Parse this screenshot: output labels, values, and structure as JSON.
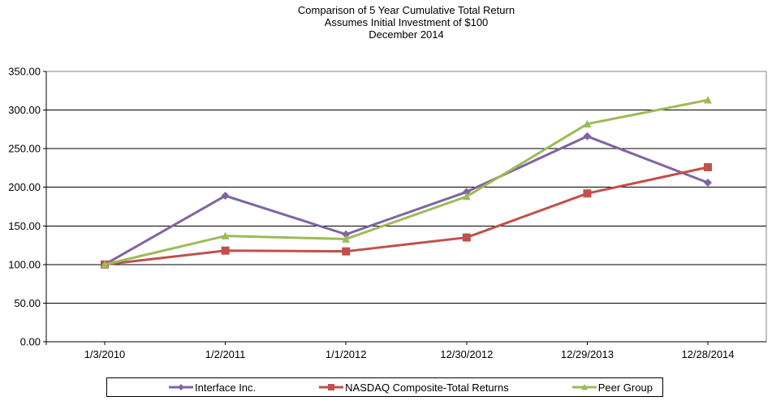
{
  "chart_data": {
    "type": "line",
    "title": "Comparison of 5 Year Cumulative Total Return",
    "subtitle": "Assumes Initial Investment of $100",
    "subtitle2": "December 2014",
    "categories": [
      "1/3/2010",
      "1/2/2011",
      "1/1/2012",
      "12/30/2012",
      "12/29/2013",
      "12/28/2014"
    ],
    "series": [
      {
        "name": "Interface Inc.",
        "marker": "diamond",
        "color": "#8064A2",
        "values": [
          100.0,
          189.0,
          139.0,
          194.0,
          266.0,
          206.0
        ]
      },
      {
        "name": "NASDAQ Composite-Total Returns",
        "marker": "square",
        "color": "#C0504D",
        "values": [
          100.0,
          118.0,
          117.0,
          135.0,
          192.0,
          226.0
        ]
      },
      {
        "name": "Peer Group",
        "marker": "triangle",
        "color": "#9BBB59",
        "values": [
          100.0,
          137.0,
          133.0,
          188.0,
          282.0,
          313.0
        ]
      }
    ],
    "ylim": [
      0,
      350
    ],
    "ytick_step": 50,
    "ytick_labels": [
      "0.00",
      "50.00",
      "100.00",
      "150.00",
      "200.00",
      "250.00",
      "300.00",
      "350.00"
    ],
    "grid": "horizontal",
    "legend_position": "bottom",
    "gridline_color": "#000000",
    "plot_border_color": "#808080",
    "text_color": "#000000"
  }
}
